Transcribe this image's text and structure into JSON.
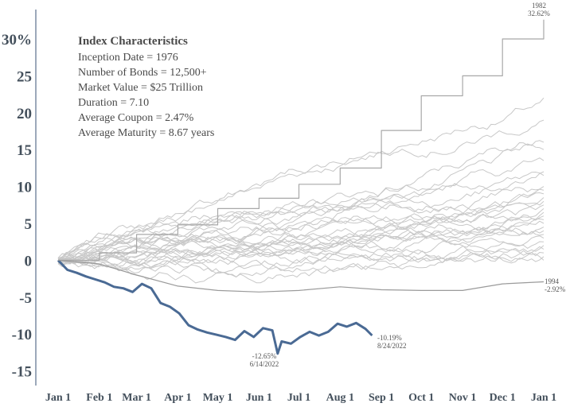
{
  "characteristics": {
    "title": "Index Characteristics",
    "lines": [
      "Inception Date = 1976",
      "Number of Bonds = 12,500+",
      "Market Value = $25 Trillion",
      "Duration = 7.10",
      "Average Coupon = 2.47%",
      "Average Maturity = 8.67 years"
    ]
  },
  "chart_data": {
    "type": "line",
    "title": "",
    "xlabel": "",
    "ylabel": "",
    "x_ticks": [
      "Jan 1",
      "Feb 1",
      "Mar 1",
      "Apr 1",
      "May 1",
      "Jun 1",
      "Jul 1",
      "Aug 1",
      "Sep 1",
      "Oct 1",
      "Nov 1",
      "Dec 1",
      "Jan 1"
    ],
    "y_ticks": [
      "30%",
      "25",
      "20",
      "15",
      "10",
      "5",
      "0",
      "-5",
      "-10",
      "-15"
    ],
    "y_tick_values": [
      30,
      25,
      20,
      15,
      10,
      5,
      0,
      -5,
      -10,
      -15
    ],
    "ylim": [
      -17,
      33
    ],
    "xlim_days": [
      0,
      365
    ],
    "grid": false,
    "colors": {
      "highlight": "#4a6a94",
      "background_series": "#c8c8c8",
      "best_year": "#a8a8a8"
    },
    "series": [
      {
        "name": "2022",
        "highlight": true,
        "x_day": [
          0,
          7,
          14,
          21,
          28,
          35,
          42,
          49,
          56,
          63,
          70,
          77,
          84,
          91,
          98,
          105,
          112,
          119,
          126,
          133,
          140,
          147,
          154,
          161,
          165,
          168,
          175,
          182,
          189,
          196,
          203,
          210,
          217,
          224,
          231,
          236
        ],
        "y": [
          0,
          -1.3,
          -1.7,
          -2.2,
          -2.6,
          -3.0,
          -3.6,
          -3.8,
          -4.3,
          -3.2,
          -3.8,
          -5.8,
          -6.3,
          -7.2,
          -8.8,
          -9.4,
          -9.8,
          -10.1,
          -10.4,
          -10.8,
          -9.6,
          -10.4,
          -9.2,
          -9.5,
          -12.65,
          -11.0,
          -11.3,
          -10.4,
          -9.7,
          -10.2,
          -9.7,
          -8.6,
          -9.0,
          -8.5,
          -9.3,
          -10.19
        ]
      },
      {
        "name": "1982",
        "x_day": [
          0,
          31,
          59,
          90,
          120,
          151,
          181,
          212,
          243,
          273,
          304,
          334,
          365
        ],
        "y": [
          0,
          1.0,
          3.5,
          4.8,
          7.0,
          8.4,
          10.3,
          12.5,
          17.6,
          22.3,
          25.0,
          30.0,
          32.62
        ]
      },
      {
        "name": "1994",
        "x_day": [
          0,
          31,
          59,
          90,
          120,
          151,
          181,
          212,
          243,
          273,
          304,
          334,
          365
        ],
        "y": [
          0,
          -0.5,
          -2.0,
          -3.5,
          -4.1,
          -4.3,
          -4.1,
          -3.6,
          -4.0,
          -4.1,
          -4.1,
          -3.2,
          -2.92
        ]
      }
    ],
    "background_series_finals": [
      22,
      19,
      16,
      15,
      13.5,
      12,
      11.5,
      10,
      9.5,
      9,
      8.5,
      8,
      7.5,
      7,
      6.5,
      6,
      5.5,
      5,
      4.5,
      4,
      3.5,
      3,
      2.5,
      2,
      1.5,
      1,
      0.5,
      0
    ],
    "annotations": [
      {
        "series": "1982",
        "label": "1982",
        "value_label": "32.62%"
      },
      {
        "series": "1994",
        "label": "1994",
        "value_label": "-2.92%"
      },
      {
        "series": "2022",
        "label": "-12.65%",
        "value_label": "6/14/2022"
      },
      {
        "series": "2022",
        "label": "-10.19%",
        "value_label": "8/24/2022"
      }
    ]
  }
}
